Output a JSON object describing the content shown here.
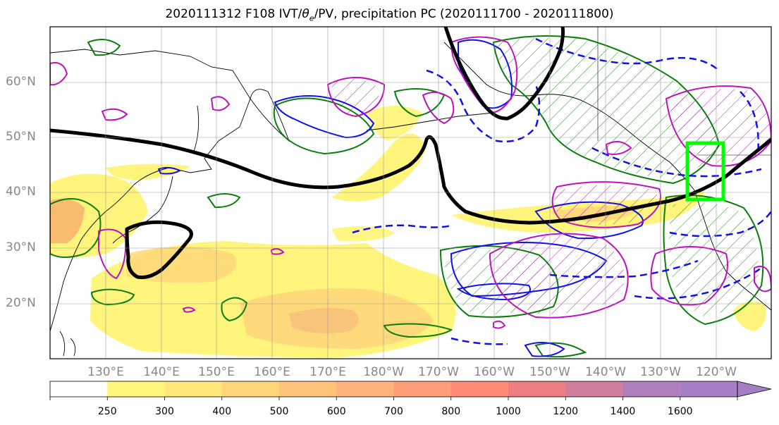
{
  "title_main": "2020111312 F108 IVT/",
  "title_theta": "θ",
  "title_sub": "e",
  "title_rest": "/PV, precipitation PC (2020111700 - 2020111800)",
  "lat_labels": [
    "60°N",
    "50°N",
    "40°N",
    "30°N",
    "20°N"
  ],
  "lon_labels": [
    "130°E",
    "140°E",
    "150°E",
    "160°E",
    "170°E",
    "180°W",
    "170°W",
    "160°W",
    "150°W",
    "140°W",
    "130°W",
    "120°W"
  ],
  "colorbar": {
    "levels": [
      "250",
      "300",
      "400",
      "500",
      "600",
      "700",
      "800",
      "1000",
      "1200",
      "1400",
      "1600"
    ],
    "colors": [
      "#ffffff",
      "#fff87a",
      "#ffe77a",
      "#ffd57a",
      "#ffc47a",
      "#ffb27a",
      "#ff9d78",
      "#ff8a78",
      "#ee7d80",
      "#d07e9e",
      "#b07ebc",
      "#a67ec6"
    ]
  },
  "colors": {
    "ivt_fill_low": "#fff46e",
    "ivt_fill_mid": "#ffd77a",
    "ivt_fill_high": "#f7b56e",
    "pv_contour": "#000000",
    "precip_pc_contour": "#0a7d0a",
    "theta_positive": "#1010ee",
    "anomaly_magenta": "#c010c0",
    "target_box": "#00ff00"
  },
  "target_box_region": "US West Coast"
}
